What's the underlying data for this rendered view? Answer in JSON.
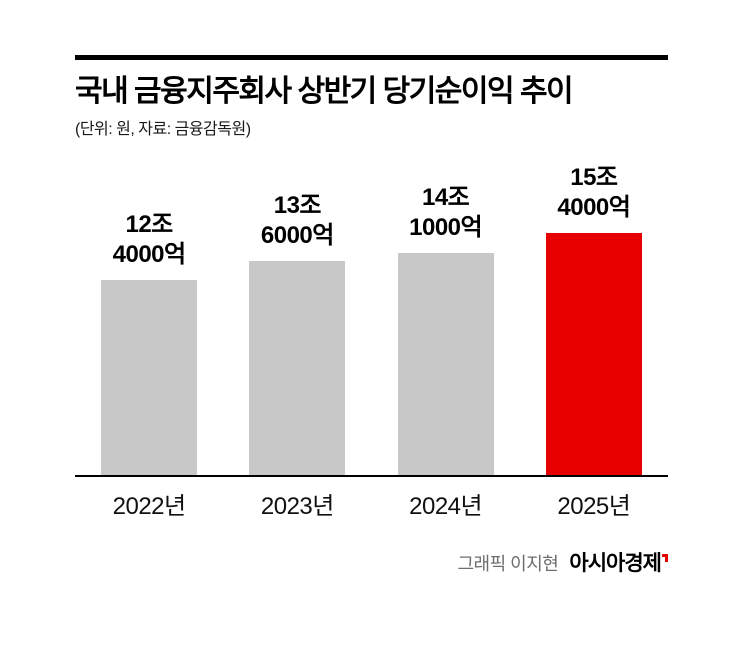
{
  "chart_data": {
    "type": "bar",
    "title": "국내 금융지주회사 상반기 당기순이익 추이",
    "unit_note": "(단위: 원, 자료: 금융감독원)",
    "categories": [
      "2022년",
      "2023년",
      "2024년",
      "2025년"
    ],
    "values": [
      12.4,
      13.6,
      14.1,
      15.4
    ],
    "value_unit": "조 원",
    "value_labels": [
      [
        "12조",
        "4000억"
      ],
      [
        "13조",
        "6000억"
      ],
      [
        "14조",
        "1000억"
      ],
      [
        "15조",
        "4000억"
      ]
    ],
    "highlight_index": 3,
    "ylim": [
      0,
      16
    ],
    "grid": false,
    "legend": false,
    "xlabel": "",
    "ylabel": ""
  },
  "colors": {
    "bar": "#c8c8c8",
    "highlight": "#e60000",
    "axis": "#000000"
  },
  "credit": {
    "prefix": "그래픽 이지현",
    "brand": "아시아경제"
  }
}
